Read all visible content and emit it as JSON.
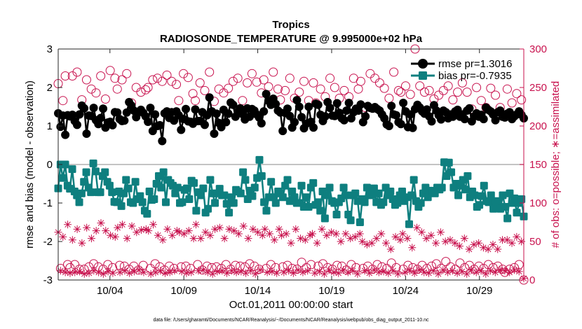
{
  "chart_data": {
    "type": "line",
    "title": "Tropics",
    "subtitle": "RADIOSONDE_TEMPERATURE @ 9.995000e+02 hPa",
    "xlabel": "Oct.01,2011 00:00:00 start",
    "ylabel": "rmse and bias (model - observation)",
    "ylabel_right": "# of obs: o=possible; ∗=assimilated",
    "footnote": "data file: /Users/gharamti/Documents/NCAR/Reanalysis/~/Documents/NCAR/Reanalysis/webpub/obs_diag_output_2011-10.nc",
    "xlim": [
      0.5,
      32.0
    ],
    "ylim": [
      -3,
      3
    ],
    "ylim_right": [
      0,
      300
    ],
    "x_ticks": [
      4,
      9,
      14,
      19,
      24,
      29
    ],
    "x_tick_labels": [
      "10/04",
      "10/09",
      "10/14",
      "10/19",
      "10/24",
      "10/29"
    ],
    "y_ticks": [
      -3,
      -2,
      -1,
      0,
      1,
      2,
      3
    ],
    "y_tick_labels": [
      "-3",
      "-2",
      "-1",
      "0",
      "1",
      "2",
      "3"
    ],
    "y_ticks_right": [
      0,
      50,
      100,
      150,
      200,
      250,
      300
    ],
    "y_tick_labels_right": [
      "0",
      "50",
      "100",
      "150",
      "200",
      "250",
      "300"
    ],
    "legend_position": "top-right",
    "series": [
      {
        "name": "rmse pr=1.3016",
        "axis": "left",
        "color": "#000000",
        "marker": "circle",
        "values": [
          1.33,
          0.98,
          1.27,
          0.77,
          1.28,
          1.25,
          1.29,
          1.13,
          1.03,
          1.3,
          1.53,
          1.46,
          0.8,
          1.27,
          1.26,
          1.47,
          1.15,
          1.05,
          1.21,
          1.45,
          0.96,
          1.09,
          1.11,
          1.02,
          1.36,
          1.35,
          1.18,
          1.13,
          1.14,
          1.35,
          1.62,
          1.53,
          1.4,
          1.23,
          1.37,
          1.42,
          1.34,
          1.25,
          1.11,
          1.47,
          0.87,
          1.3,
          1.0,
          1.02,
          0.61,
          1.33,
          1.38,
          1.21,
          1.36,
          1.14,
          1.38,
          1.28,
          0.9,
          1.18,
          1.44,
          1.12,
          1.11,
          1.06,
          1.43,
          1.13,
          1.13,
          1.36,
          1.03,
          1.28,
          1.74,
          1.38,
          0.8,
          1.32,
          1.08,
          0.97,
          1.42,
          1.1,
          1.32,
          1.61,
          1.55,
          1.24,
          1.37,
          1.46,
          1.31,
          1.17,
          1.46,
          1.24,
          1.44,
          1.4,
          1.3,
          1.22,
          1.07,
          1.38,
          1.83,
          1.65,
          1.55,
          1.71,
          1.57,
          1.4,
          1.35,
          0.87,
          1.34,
          1.45,
          1.26,
          0.96,
          1.1,
          1.67,
          1.5,
          1.23,
          0.94,
          1.06,
          1.5,
          1.11,
          0.96,
          1.58,
          1.55,
          1.29,
          1.13,
          1.25,
          1.62,
          1.47,
          1.27,
          1.26,
          1.59,
          1.34,
          1.2,
          1.15,
          1.4,
          1.6,
          1.2,
          1.36,
          1.45,
          1.4,
          1.56,
          1.1,
          1.25,
          1.52,
          1.47,
          1.45,
          1.49,
          1.44,
          1.4,
          1.3,
          1.2,
          1.04,
          1.0,
          1.52,
          1.3,
          1.28,
          1.1,
          1.05,
          1.6,
          1.38,
          0.97,
          1.3,
          0.95,
          1.44,
          1.55,
          1.48,
          1.38,
          1.32,
          1.43,
          1.25,
          1.12,
          1.54,
          1.4,
          1.28,
          1.17,
          1.4,
          1.36,
          1.2,
          1.3,
          1.24,
          1.38,
          1.42,
          1.24,
          1.3,
          1.18,
          1.4,
          1.46,
          1.12,
          1.25,
          1.33,
          1.24,
          1.29,
          1.18,
          1.48,
          1.42,
          1.38,
          1.3,
          1.15,
          1.36,
          1.4,
          1.24,
          1.22,
          1.32,
          1.36,
          1.18,
          1.25,
          1.3,
          1.38,
          1.29,
          1.2
        ]
      },
      {
        "name": "bias pr=-0.7935",
        "axis": "left",
        "color": "#0e7f7f",
        "marker": "square",
        "values": [
          -0.62,
          0.0,
          -0.35,
          0.0,
          -0.55,
          -0.63,
          -0.12,
          -0.7,
          -0.8,
          -0.98,
          -0.75,
          -0.45,
          -0.2,
          -0.6,
          -0.72,
          0.03,
          -0.18,
          -0.72,
          -0.72,
          -0.3,
          -0.2,
          -0.45,
          -0.55,
          -0.72,
          -0.97,
          -0.98,
          -0.7,
          -1.08,
          -0.75,
          -0.4,
          -0.62,
          -0.98,
          -1.0,
          -0.45,
          -0.9,
          -0.82,
          -0.98,
          -1.2,
          -1.28,
          -0.7,
          -0.92,
          -0.9,
          -0.5,
          -0.3,
          -0.6,
          -0.2,
          -0.98,
          -0.4,
          -0.48,
          -0.55,
          -0.75,
          -0.6,
          -1.0,
          -0.98,
          -0.66,
          -0.62,
          -0.9,
          -0.42,
          -0.48,
          -1.2,
          -0.72,
          -0.8,
          -0.62,
          -1.25,
          -1.15,
          -0.4,
          -0.75,
          -1.0,
          -0.75,
          -0.63,
          -0.8,
          -0.8,
          -1.02,
          -1.25,
          -0.85,
          -1.0,
          -0.66,
          -0.7,
          -0.75,
          -0.2,
          -0.4,
          -0.9,
          -0.68,
          -0.82,
          -0.6,
          -0.35,
          0.12,
          -0.3,
          -0.98,
          -1.2,
          -0.85,
          -0.45,
          -0.85,
          -1.0,
          -0.7,
          -0.75,
          -0.85,
          -0.55,
          -0.4,
          -0.95,
          -0.7,
          -0.85,
          -1.0,
          -1.0,
          -0.55,
          -1.1,
          -0.85,
          -1.1,
          -0.6,
          -0.48,
          -1.05,
          -0.98,
          -1.2,
          -0.7,
          -1.4,
          -0.8,
          -0.6,
          -0.95,
          -1.0,
          -1.3,
          -0.98,
          -0.88,
          -0.6,
          -0.8,
          -1.3,
          -1.45,
          -0.8,
          -0.75,
          -0.95,
          -1.5,
          -0.9,
          -0.98,
          -0.6,
          -0.8,
          -0.78,
          -0.62,
          -0.98,
          -0.75,
          -1.05,
          -0.98,
          -0.6,
          -0.8,
          -0.7,
          -0.9,
          -1.05,
          -1.0,
          -0.8,
          -0.7,
          -0.95,
          -0.85,
          -1.55,
          -0.8,
          -0.4,
          -0.95,
          -1.1,
          -1.0,
          -0.75,
          -0.6,
          -0.85,
          -0.68,
          -0.7,
          -0.75,
          -0.6,
          -0.65,
          -0.6,
          0.06,
          -0.3,
          0.05,
          -0.2,
          -0.6,
          -0.5,
          -0.8,
          -0.55,
          -0.4,
          -0.65,
          -0.3,
          -0.85,
          -0.7,
          -0.8,
          -1.1,
          -1.05,
          -0.82,
          -0.55,
          -0.95,
          -0.98,
          -0.8,
          -1.15,
          -0.95,
          -1.0,
          -1.15,
          -0.8,
          -1.1,
          -1.4,
          -0.75,
          -1.0,
          -0.88,
          -1.25,
          -1.0,
          -0.9,
          -1.35
        ]
      },
      {
        "name": "# possible",
        "axis": "right",
        "color": "#c8124e",
        "marker": "open-circle",
        "values": [
          255,
          15,
          233,
          265,
          20,
          16,
          265,
          20,
          270,
          14,
          234,
          14,
          260,
          17,
          248,
          21,
          243,
          17,
          265,
          14,
          235,
          20,
          272,
          16,
          262,
          248,
          19,
          260,
          18,
          268,
          14,
          230,
          18,
          250,
          13,
          244,
          19,
          247,
          250,
          15,
          260,
          21,
          262,
          17,
          258,
          13,
          266,
          18,
          258,
          15,
          254,
          233,
          17,
          268,
          18,
          263,
          15,
          242,
          233,
          20,
          256,
          13,
          246,
          18,
          270,
          16,
          232,
          17,
          248,
          15,
          243,
          20,
          249,
          14,
          258,
          19,
          262,
          18,
          233,
          17,
          256,
          21,
          268,
          18,
          257,
          14,
          243,
          260,
          15,
          251,
          20,
          270,
          16,
          248,
          234,
          17,
          246,
          19,
          262,
          15,
          236,
          14,
          244,
          23,
          258,
          16,
          233,
          20,
          256,
          230,
          18,
          248,
          21,
          238,
          16,
          262,
          14,
          250,
          19,
          236,
          18,
          246,
          13,
          238,
          20,
          262,
          16,
          248,
          258,
          15,
          224,
          18,
          268,
          14,
          262,
          20,
          256,
          17,
          249,
          15,
          236,
          22,
          270,
          16,
          246,
          244,
          14,
          252,
          19,
          241,
          16,
          300,
          14,
          252,
          19,
          244,
          15,
          246,
          18,
          235,
          21,
          240,
          15,
          246,
          24,
          252,
          17,
          234,
          14,
          244,
          22,
          256,
          16,
          244,
          19,
          222,
          14,
          250,
          18,
          233,
          15,
          224,
          20,
          249,
          16,
          240,
          18,
          224,
          14,
          10,
          248,
          14,
          230,
          16,
          242,
          20,
          234,
          0
        ]
      },
      {
        "name": "# assimilated",
        "axis": "right",
        "color": "#c8124e",
        "marker": "star",
        "values": [
          62,
          12,
          56,
          10,
          72,
          9,
          52,
          10,
          66,
          11,
          48,
          8,
          68,
          9,
          54,
          12,
          64,
          10,
          74,
          8,
          64,
          11,
          58,
          9,
          56,
          68,
          10,
          72,
          12,
          54,
          9,
          70,
          11,
          62,
          13,
          65,
          10,
          66,
          64,
          8,
          72,
          10,
          58,
          12,
          52,
          9,
          66,
          10,
          58,
          12,
          64,
          62,
          11,
          60,
          9,
          64,
          10,
          54,
          72,
          12,
          54,
          13,
          62,
          10,
          58,
          8,
          66,
          11,
          68,
          12,
          54,
          9,
          66,
          12,
          64,
          10,
          60,
          11,
          70,
          9,
          54,
          12,
          66,
          8,
          62,
          13,
          58,
          66,
          10,
          60,
          11,
          52,
          9,
          66,
          58,
          10,
          60,
          12,
          48,
          9,
          66,
          13,
          54,
          10,
          52,
          12,
          58,
          60,
          9,
          48,
          11,
          66,
          8,
          58,
          13,
          62,
          10,
          60,
          9,
          50,
          13,
          60,
          10,
          54,
          12,
          56,
          8,
          60,
          50,
          12,
          46,
          9,
          48,
          13,
          54,
          10,
          60,
          11,
          48,
          9,
          40,
          12,
          56,
          8,
          52,
          60,
          10,
          54,
          12,
          42,
          9,
          68,
          13,
          62,
          10,
          54,
          9,
          58,
          12,
          48,
          8,
          62,
          13,
          50,
          10,
          52,
          12,
          48,
          9,
          44,
          11,
          54,
          8,
          40,
          13,
          46,
          10,
          48,
          12,
          42,
          8,
          40,
          12,
          46,
          10,
          40,
          13,
          52,
          12,
          52,
          10,
          48,
          13,
          56,
          11,
          50,
          2
        ]
      }
    ]
  }
}
